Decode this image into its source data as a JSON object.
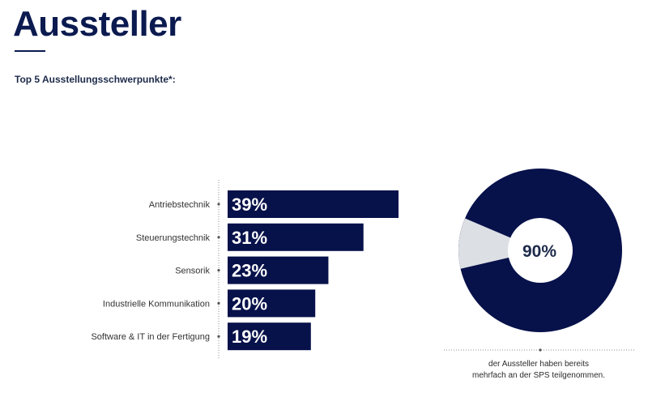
{
  "header": {
    "title": "Aussteller",
    "subtitle": "Top 5 Ausstellungsschwerpunkte*:"
  },
  "colors": {
    "bar": "#07114a",
    "pie_main": "#07114a",
    "pie_rest": "#dcdfe4",
    "pie_hole": "#ffffff",
    "axis": "#8a8f99",
    "label": "#333333"
  },
  "chart_data": [
    {
      "type": "bar",
      "orientation": "horizontal",
      "title": "Top 5 Ausstellungsschwerpunkte*:",
      "categories": [
        "Antriebstechnik",
        "Steuerungstechnik",
        "Sensorik",
        "Industrielle Kommunikation",
        "Software & IT in der Fertigung"
      ],
      "values": [
        39,
        31,
        23,
        20,
        19
      ],
      "value_labels": [
        "39%",
        "31%",
        "23%",
        "20%",
        "19%"
      ],
      "unit": "%",
      "xlim": [
        0,
        40
      ],
      "grid": false
    },
    {
      "type": "pie",
      "donut": true,
      "values": [
        90,
        10
      ],
      "center_label": "90%",
      "caption_lines": [
        "der Aussteller haben bereits",
        "mehrfach an der SPS teilgenommen."
      ]
    }
  ]
}
